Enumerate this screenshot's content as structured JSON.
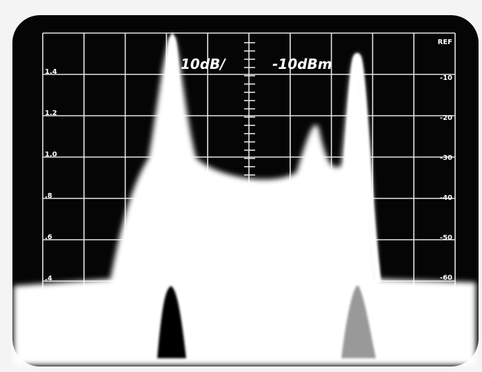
{
  "header": {
    "scale": "10dB/",
    "reference": "-10dBm"
  },
  "left_scale": [
    "1.4",
    "1.2",
    "1.0",
    ".8",
    ".6",
    ".4"
  ],
  "right_scale": [
    "REF",
    "-10",
    "-20",
    "-30",
    "-40",
    "-50",
    "-60"
  ]
}
